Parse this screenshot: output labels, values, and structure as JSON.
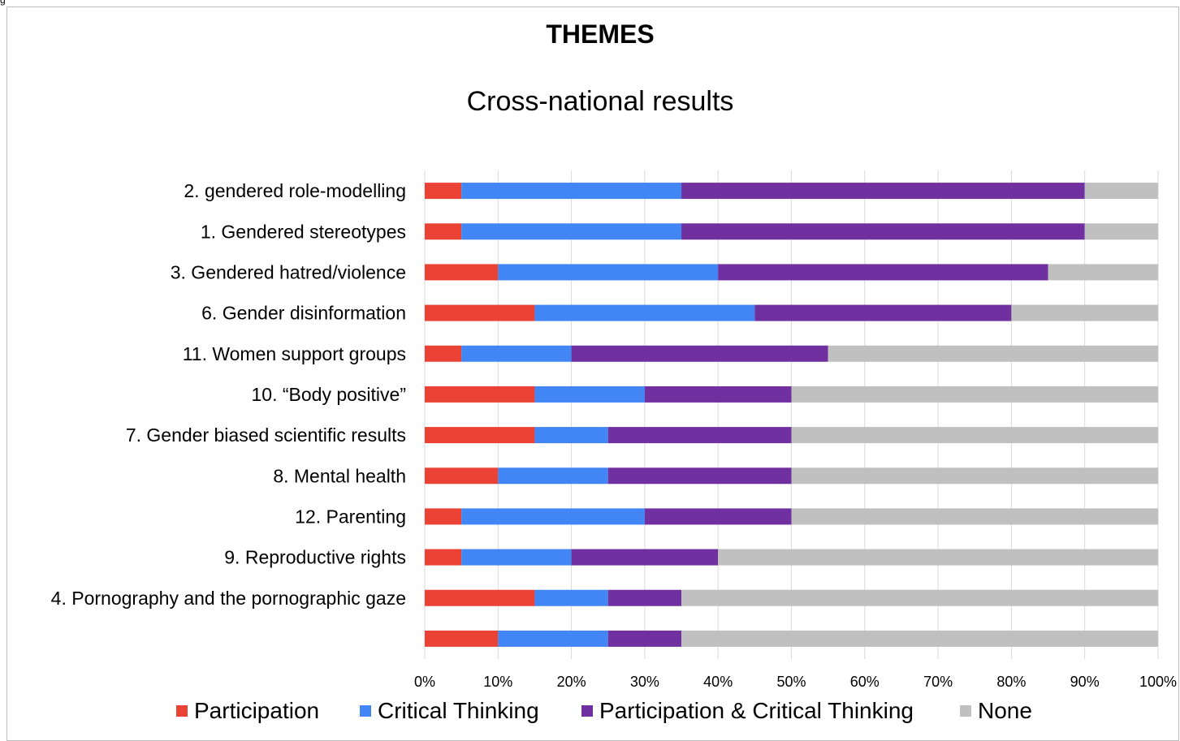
{
  "header": {
    "corner_mark": "g"
  },
  "chart_data": {
    "type": "bar",
    "orientation": "horizontal",
    "stacked": "percent",
    "title": "THEMES",
    "subtitle": "Cross-national results",
    "categories": [
      "2. gendered role-modelling",
      "1. Gendered stereotypes",
      "3. Gendered hatred/violence",
      "6. Gender disinformation",
      "11. Women support groups",
      "10. “Body positive”",
      "7. Gender biased scientific results",
      "8. Mental health",
      "12. Parenting",
      "9. Reproductive rights",
      "4. Pornography and the pornographic gaze",
      ""
    ],
    "series": [
      {
        "name": "Participation",
        "color": "#ea4335",
        "values": [
          5,
          5,
          10,
          15,
          5,
          15,
          15,
          10,
          5,
          5,
          15,
          10
        ]
      },
      {
        "name": "Critical Thinking",
        "color": "#4285f4",
        "values": [
          30,
          30,
          30,
          30,
          15,
          15,
          10,
          15,
          25,
          15,
          10,
          15
        ]
      },
      {
        "name": "Participation & Critical Thinking",
        "color": "#7030a0",
        "values": [
          55,
          55,
          45,
          35,
          35,
          20,
          25,
          25,
          20,
          20,
          10,
          10
        ]
      },
      {
        "name": "None",
        "color": "#c0c0c0",
        "values": [
          10,
          10,
          15,
          20,
          45,
          50,
          50,
          50,
          50,
          60,
          65,
          65
        ]
      }
    ],
    "x_ticks": [
      "0%",
      "10%",
      "20%",
      "30%",
      "40%",
      "50%",
      "60%",
      "70%",
      "80%",
      "90%",
      "100%"
    ],
    "xlim": [
      0,
      100
    ],
    "grid": true,
    "legend_position": "bottom"
  }
}
